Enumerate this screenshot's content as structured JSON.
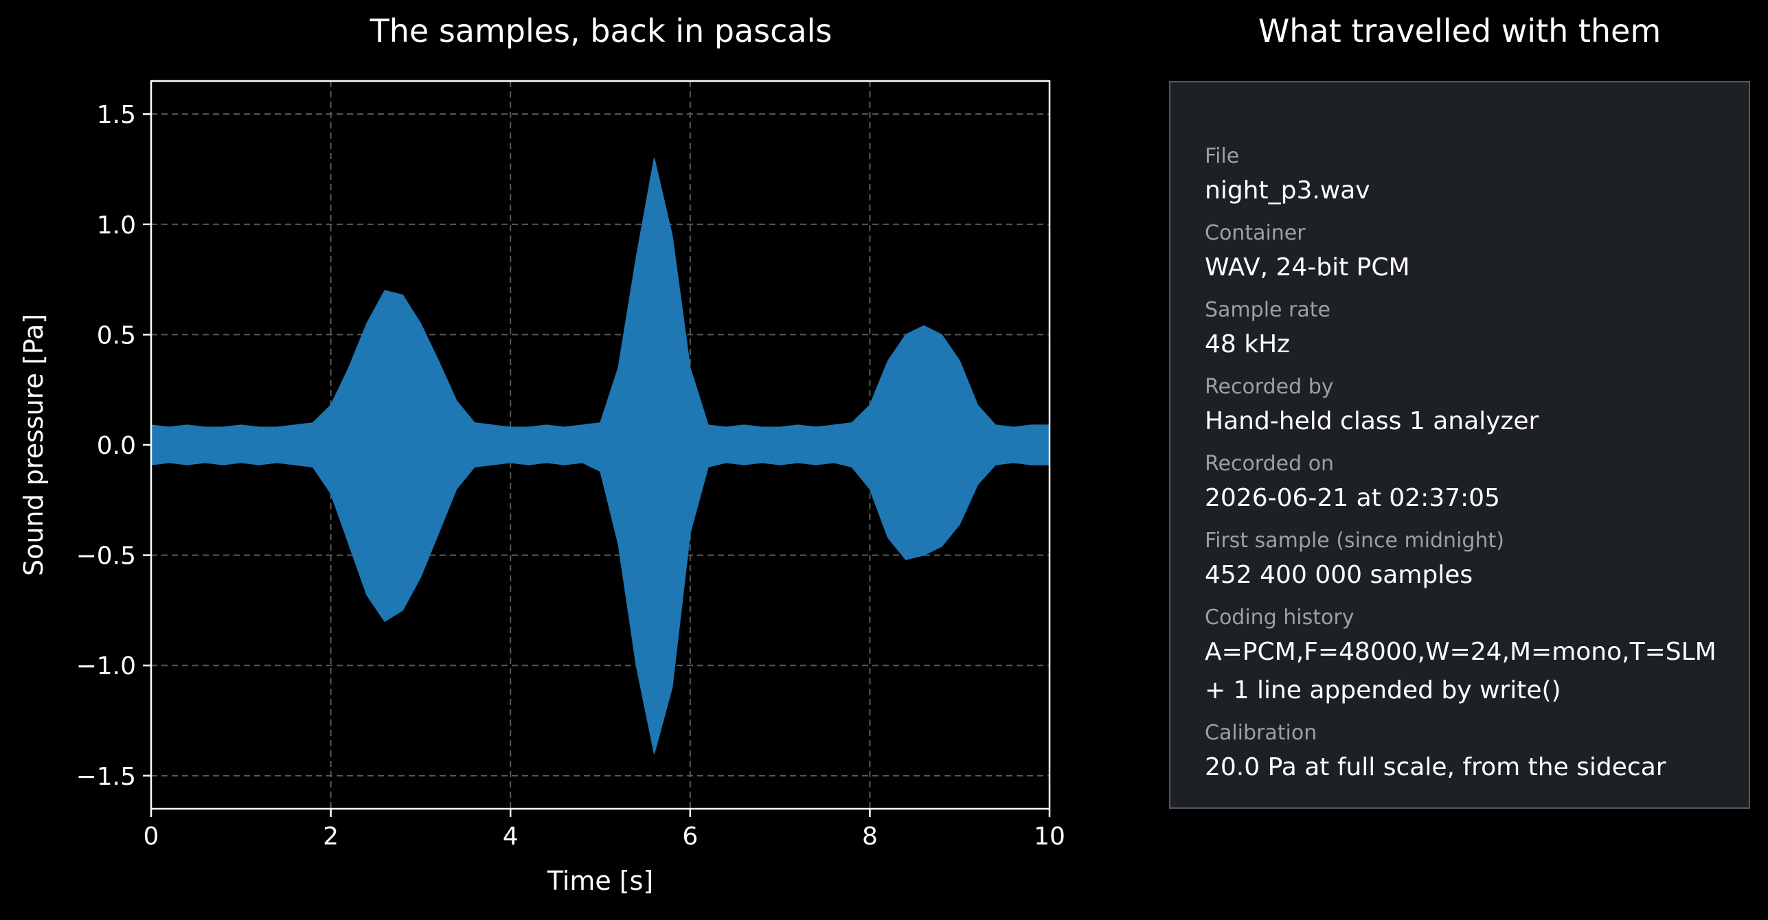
{
  "plot_title": "The samples, back in pascals",
  "meta_title": "What travelled with them",
  "metadata": {
    "file_label": "File",
    "file_value": "night_p3.wav",
    "container_label": "Container",
    "container_value": "WAV, 24-bit PCM",
    "rate_label": "Sample rate",
    "rate_value": "48 kHz",
    "recorder_label": "Recorded by",
    "recorder_value": "Hand-held class 1 analyzer",
    "date_label": "Recorded on",
    "date_value": "2026-06-21 at 02:37:05",
    "first_label": "First sample (since midnight)",
    "first_value": "452 400 000 samples",
    "history_label": "Coding history",
    "history_value_1": "A=PCM,F=48000,W=24,M=mono,T=SLM",
    "history_value_2": "+ 1 line appended by write()",
    "calib_label": "Calibration",
    "calib_value": "20.0 Pa at full scale, from the sidecar"
  },
  "chart_data": {
    "type": "line",
    "title": "The samples, back in pascals",
    "xlabel": "Time [s]",
    "ylabel": "Sound pressure [Pa]",
    "xlim": [
      0,
      10
    ],
    "ylim": [
      -1.65,
      1.65
    ],
    "xticks": [
      0,
      2,
      4,
      6,
      8,
      10
    ],
    "xtick_labels": [
      "0",
      "2",
      "4",
      "6",
      "8",
      "10"
    ],
    "yticks": [
      -1.5,
      -1.0,
      -0.5,
      0.0,
      0.5,
      1.0,
      1.5
    ],
    "ytick_labels": [
      "−1.5",
      "−1.0",
      "−0.5",
      "0.0",
      "0.5",
      "1.0",
      "1.5"
    ],
    "grid": true,
    "color": "#1f77b4",
    "series": [
      {
        "x": [
          0,
          0.2,
          0.4,
          0.6,
          0.8,
          1.0,
          1.2,
          1.4,
          1.6,
          1.8,
          2.0,
          2.2,
          2.4,
          2.6,
          2.8,
          3.0,
          3.2,
          3.4,
          3.6,
          3.8,
          4.0,
          4.2,
          4.4,
          4.6,
          4.8,
          5.0,
          5.2,
          5.4,
          5.6,
          5.8,
          6.0,
          6.2,
          6.4,
          6.6,
          6.8,
          7.0,
          7.2,
          7.4,
          7.6,
          7.8,
          8.0,
          8.2,
          8.4,
          8.6,
          8.8,
          9.0,
          9.2,
          9.4,
          9.6,
          9.8,
          10.0
        ],
        "upper": [
          0.09,
          0.08,
          0.09,
          0.08,
          0.08,
          0.09,
          0.08,
          0.08,
          0.09,
          0.1,
          0.18,
          0.35,
          0.55,
          0.7,
          0.68,
          0.55,
          0.38,
          0.2,
          0.1,
          0.09,
          0.08,
          0.08,
          0.09,
          0.08,
          0.09,
          0.1,
          0.35,
          0.85,
          1.3,
          0.95,
          0.35,
          0.09,
          0.08,
          0.09,
          0.08,
          0.08,
          0.09,
          0.08,
          0.09,
          0.1,
          0.18,
          0.38,
          0.5,
          0.54,
          0.5,
          0.38,
          0.18,
          0.09,
          0.08,
          0.09,
          0.09
        ],
        "lower": [
          -0.09,
          -0.08,
          -0.09,
          -0.08,
          -0.09,
          -0.08,
          -0.09,
          -0.08,
          -0.09,
          -0.1,
          -0.22,
          -0.45,
          -0.68,
          -0.8,
          -0.75,
          -0.6,
          -0.4,
          -0.2,
          -0.1,
          -0.09,
          -0.08,
          -0.09,
          -0.08,
          -0.09,
          -0.08,
          -0.12,
          -0.45,
          -1.0,
          -1.4,
          -1.1,
          -0.4,
          -0.1,
          -0.08,
          -0.09,
          -0.08,
          -0.09,
          -0.08,
          -0.09,
          -0.08,
          -0.1,
          -0.2,
          -0.42,
          -0.52,
          -0.5,
          -0.46,
          -0.36,
          -0.18,
          -0.09,
          -0.08,
          -0.09,
          -0.09
        ]
      }
    ]
  }
}
